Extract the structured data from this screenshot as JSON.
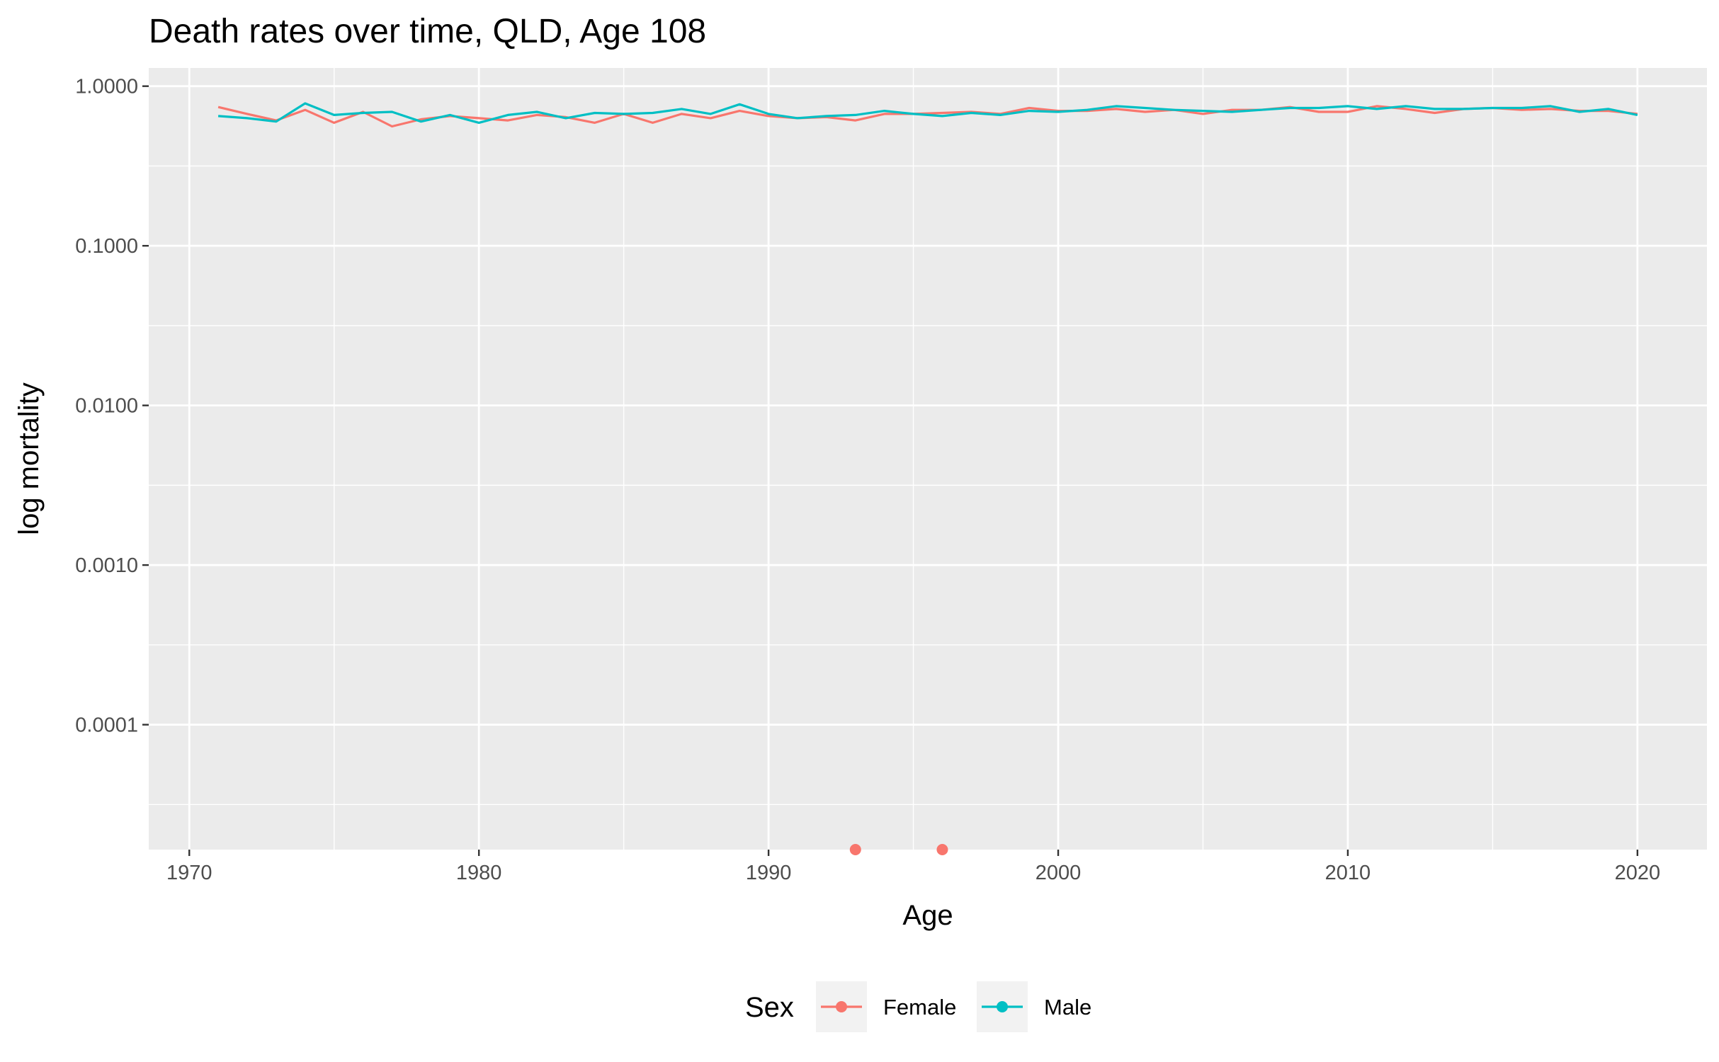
{
  "chart_data": {
    "type": "line",
    "title": "Death rates over time, QLD, Age 108",
    "xlabel": "Age",
    "ylabel": "log mortality",
    "y_scale": "log10",
    "xlim": [
      1968.6,
      2022.4
    ],
    "ylim": [
      1.65e-05,
      1.3
    ],
    "x_ticks": [
      1970,
      1980,
      1990,
      2000,
      2010,
      2020
    ],
    "y_ticks": [
      {
        "value": 0.0001,
        "label": "0.0001"
      },
      {
        "value": 0.001,
        "label": "0.0010"
      },
      {
        "value": 0.01,
        "label": "0.0100"
      },
      {
        "value": 0.1,
        "label": "0.1000"
      },
      {
        "value": 1,
        "label": "1.0000"
      }
    ],
    "grid": true,
    "legend": {
      "title": "Sex",
      "position": "bottom"
    },
    "series": [
      {
        "name": "Female",
        "color": "#F8766D",
        "points": [
          [
            1971,
            0.74
          ],
          [
            1972,
            0.67
          ],
          [
            1973,
            0.61
          ],
          [
            1974,
            0.71
          ],
          [
            1975,
            0.59
          ],
          [
            1976,
            0.69
          ],
          [
            1977,
            0.56
          ],
          [
            1978,
            0.62
          ],
          [
            1979,
            0.65
          ],
          [
            1980,
            0.63
          ],
          [
            1981,
            0.61
          ],
          [
            1982,
            0.66
          ],
          [
            1983,
            0.64
          ],
          [
            1984,
            0.59
          ],
          [
            1985,
            0.67
          ],
          [
            1986,
            0.59
          ],
          [
            1987,
            0.67
          ],
          [
            1988,
            0.63
          ],
          [
            1989,
            0.7
          ],
          [
            1990,
            0.65
          ],
          [
            1991,
            0.63
          ],
          [
            1992,
            0.64
          ],
          [
            1993,
            0.61
          ],
          [
            1994,
            0.67
          ],
          [
            1995,
            0.67
          ],
          [
            1996,
            0.68
          ],
          [
            1997,
            0.69
          ],
          [
            1998,
            0.67
          ],
          [
            1999,
            0.73
          ],
          [
            2000,
            0.7
          ],
          [
            2001,
            0.7
          ],
          [
            2002,
            0.72
          ],
          [
            2003,
            0.69
          ],
          [
            2004,
            0.71
          ],
          [
            2005,
            0.67
          ],
          [
            2006,
            0.71
          ],
          [
            2007,
            0.71
          ],
          [
            2008,
            0.74
          ],
          [
            2009,
            0.69
          ],
          [
            2010,
            0.69
          ],
          [
            2011,
            0.75
          ],
          [
            2012,
            0.72
          ],
          [
            2013,
            0.68
          ],
          [
            2014,
            0.72
          ],
          [
            2015,
            0.73
          ],
          [
            2016,
            0.71
          ],
          [
            2017,
            0.72
          ],
          [
            2018,
            0.7
          ],
          [
            2019,
            0.7
          ],
          [
            2020,
            0.67
          ]
        ],
        "points_only": [
          [
            1993,
            1.65e-05
          ],
          [
            1996,
            1.65e-05
          ]
        ]
      },
      {
        "name": "Male",
        "color": "#00BFC4",
        "points": [
          [
            1971,
            0.65
          ],
          [
            1972,
            0.63
          ],
          [
            1973,
            0.6
          ],
          [
            1974,
            0.78
          ],
          [
            1975,
            0.66
          ],
          [
            1976,
            0.68
          ],
          [
            1977,
            0.69
          ],
          [
            1978,
            0.6
          ],
          [
            1979,
            0.66
          ],
          [
            1980,
            0.59
          ],
          [
            1981,
            0.66
          ],
          [
            1982,
            0.69
          ],
          [
            1983,
            0.63
          ],
          [
            1984,
            0.68
          ],
          [
            1985,
            0.67
          ],
          [
            1986,
            0.68
          ],
          [
            1987,
            0.72
          ],
          [
            1988,
            0.67
          ],
          [
            1989,
            0.77
          ],
          [
            1990,
            0.67
          ],
          [
            1991,
            0.63
          ],
          [
            1992,
            0.65
          ],
          [
            1993,
            0.66
          ],
          [
            1994,
            0.7
          ],
          [
            1995,
            0.67
          ],
          [
            1996,
            0.65
          ],
          [
            1997,
            0.68
          ],
          [
            1998,
            0.66
          ],
          [
            1999,
            0.7
          ],
          [
            2000,
            0.69
          ],
          [
            2001,
            0.71
          ],
          [
            2002,
            0.75
          ],
          [
            2003,
            0.73
          ],
          [
            2004,
            0.71
          ],
          [
            2005,
            0.7
          ],
          [
            2006,
            0.69
          ],
          [
            2007,
            0.71
          ],
          [
            2008,
            0.73
          ],
          [
            2009,
            0.73
          ],
          [
            2010,
            0.75
          ],
          [
            2011,
            0.72
          ],
          [
            2012,
            0.75
          ],
          [
            2013,
            0.72
          ],
          [
            2014,
            0.72
          ],
          [
            2015,
            0.73
          ],
          [
            2016,
            0.73
          ],
          [
            2017,
            0.75
          ],
          [
            2018,
            0.69
          ],
          [
            2019,
            0.72
          ],
          [
            2020,
            0.66
          ]
        ]
      }
    ]
  }
}
